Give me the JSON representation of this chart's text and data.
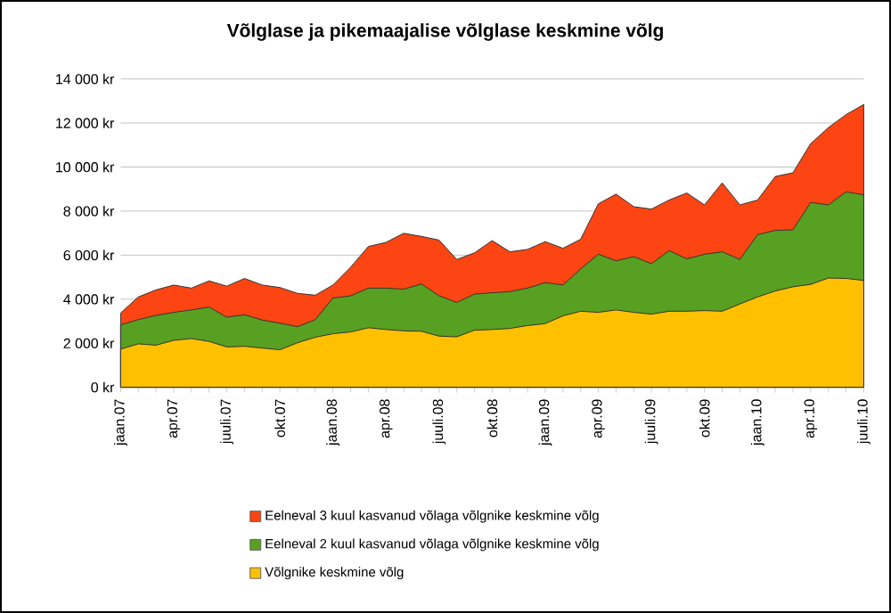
{
  "chart_data": {
    "type": "area",
    "title": "Võlglase ja pikemaajalise võlglase keskmine võlg",
    "categories": [
      "jaan.07",
      null,
      null,
      "apr.07",
      null,
      null,
      "juuli.07",
      null,
      null,
      "okt.07",
      null,
      null,
      "jaan.08",
      null,
      null,
      "apr.08",
      null,
      null,
      "juuli.08",
      null,
      null,
      "okt.08",
      null,
      null,
      "jaan.09",
      null,
      null,
      "apr.09",
      null,
      null,
      "juuli.09",
      null,
      null,
      "okt.09",
      null,
      null,
      "jaan.10",
      null,
      null,
      "apr.10",
      null,
      null,
      "juuli.10"
    ],
    "series": [
      {
        "name": "Eelneval 3 kuul kasvanud võlaga võlgnike keskmine võlg",
        "color": "#fc4512",
        "values": [
          3370,
          4100,
          4420,
          4640,
          4500,
          4830,
          4590,
          4940,
          4640,
          4530,
          4260,
          4180,
          4640,
          5450,
          6390,
          6580,
          6990,
          6850,
          6680,
          5800,
          6100,
          6660,
          6150,
          6260,
          6610,
          6310,
          6720,
          8330,
          8770,
          8200,
          8090,
          8500,
          8820,
          8280,
          9280,
          8280,
          8500,
          9570,
          9740,
          11060,
          11790,
          12380,
          12840
        ]
      },
      {
        "name": "Eelneval 2 kuul kasvanud võlaga võlgnike keskmine võlg",
        "color": "#58a021",
        "values": [
          2830,
          3070,
          3260,
          3400,
          3510,
          3640,
          3180,
          3290,
          3050,
          2910,
          2750,
          3070,
          4050,
          4150,
          4500,
          4500,
          4450,
          4690,
          4150,
          3850,
          4230,
          4290,
          4340,
          4500,
          4750,
          4640,
          5370,
          6040,
          5740,
          5930,
          5610,
          6200,
          5830,
          6040,
          6150,
          5800,
          6930,
          7120,
          7150,
          8390,
          8280,
          8870,
          8740
        ]
      },
      {
        "name": "Võlgnike keskmine võlg",
        "color": "#ffc000",
        "values": [
          1730,
          1970,
          1910,
          2130,
          2210,
          2080,
          1830,
          1860,
          1780,
          1700,
          2020,
          2270,
          2430,
          2510,
          2700,
          2620,
          2560,
          2540,
          2320,
          2290,
          2590,
          2620,
          2670,
          2800,
          2890,
          3240,
          3450,
          3400,
          3510,
          3400,
          3320,
          3450,
          3450,
          3480,
          3450,
          3780,
          4100,
          4370,
          4560,
          4670,
          4960,
          4940,
          4850
        ]
      }
    ],
    "ylim": [
      0,
      14000
    ],
    "yticks": [
      {
        "value": 0,
        "label": "0 kr"
      },
      {
        "value": 2000,
        "label": "2 000 kr"
      },
      {
        "value": 4000,
        "label": "4 000 kr"
      },
      {
        "value": 6000,
        "label": "6 000 kr"
      },
      {
        "value": 8000,
        "label": "8 000 kr"
      },
      {
        "value": 10000,
        "label": "10 000 kr"
      },
      {
        "value": 12000,
        "label": "12 000 kr"
      },
      {
        "value": 14000,
        "label": "14 000 kr"
      }
    ],
    "grid": "y",
    "legend": "bottom"
  }
}
